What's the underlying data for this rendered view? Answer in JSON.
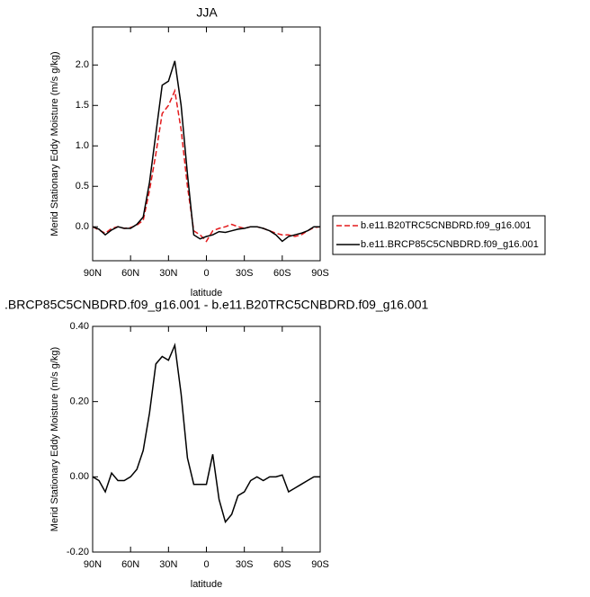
{
  "chart_data": [
    {
      "type": "line",
      "title": "JJA",
      "x_label": "latitude",
      "y_label": "Merid Stationary Eddy Moisture (m/s g/kg)",
      "x": [
        90,
        85,
        80,
        75,
        70,
        65,
        60,
        55,
        50,
        45,
        40,
        35,
        30,
        25,
        20,
        15,
        10,
        5,
        0,
        -5,
        -10,
        -15,
        -20,
        -25,
        -30,
        -35,
        -40,
        -45,
        -50,
        -55,
        -60,
        -65,
        -70,
        -75,
        -80,
        -85,
        -90
      ],
      "xlim": [
        90,
        -90
      ],
      "xticks": [
        {
          "value": 90,
          "label": "90N"
        },
        {
          "value": 60,
          "label": "60N"
        },
        {
          "value": 30,
          "label": "30N"
        },
        0,
        {
          "value": -30,
          "label": "30S"
        },
        {
          "value": -60,
          "label": "60S"
        },
        {
          "value": -90,
          "label": "90S"
        }
      ],
      "ylim": [
        -0.42,
        2.47
      ],
      "yticks": [
        {
          "value": 0,
          "label": "0.0"
        },
        0.5,
        {
          "value": 1,
          "label": "1.0"
        },
        1.5,
        {
          "value": 2,
          "label": "2.0"
        }
      ],
      "legend": "right",
      "series": [
        {
          "name": "b.e11.B20TRC5CNBDRD.f09_g16.001",
          "color": "#e41a1c",
          "dash": "dashed",
          "values": [
            0,
            -0.04,
            -0.08,
            -0.02,
            0,
            -0.02,
            -0.01,
            0.02,
            0.08,
            0.45,
            0.9,
            1.4,
            1.5,
            1.68,
            1.2,
            0.5,
            -0.05,
            -0.1,
            -0.18,
            -0.05,
            -0.02,
            0,
            0.03,
            0,
            -0.02,
            0,
            0,
            -0.02,
            -0.05,
            -0.08,
            -0.1,
            -0.1,
            -0.12,
            -0.1,
            -0.05,
            -0.01,
            0
          ]
        },
        {
          "name": "b.e11.BRCP85C5CNBDRD.f09_g16.001",
          "color": "#000000",
          "dash": "solid",
          "values": [
            0,
            -0.03,
            -0.1,
            -0.04,
            0,
            -0.02,
            -0.02,
            0.03,
            0.12,
            0.55,
            1.15,
            1.75,
            1.8,
            2.05,
            1.5,
            0.65,
            -0.1,
            -0.15,
            -0.12,
            -0.1,
            -0.06,
            -0.07,
            -0.05,
            -0.03,
            -0.02,
            0,
            0,
            -0.02,
            -0.05,
            -0.1,
            -0.18,
            -0.12,
            -0.1,
            -0.08,
            -0.05,
            0,
            0
          ]
        }
      ]
    },
    {
      "type": "line",
      "title": ".BRCP85C5CNBDRD.f09_g16.001 - b.e11.B20TRC5CNBDRD.f09_g16.001",
      "x_label": "latitude",
      "y_label": "Merid Stationary Eddy Moisture (m/s g/kg)",
      "x": [
        90,
        85,
        80,
        75,
        70,
        65,
        60,
        55,
        50,
        45,
        40,
        35,
        30,
        25,
        20,
        15,
        10,
        5,
        0,
        -5,
        -10,
        -15,
        -20,
        -25,
        -30,
        -35,
        -40,
        -45,
        -50,
        -55,
        -60,
        -65,
        -70,
        -75,
        -80,
        -85,
        -90
      ],
      "xlim": [
        90,
        -90
      ],
      "xticks": [
        {
          "value": 90,
          "label": "90N"
        },
        {
          "value": 60,
          "label": "60N"
        },
        {
          "value": 30,
          "label": "30N"
        },
        0,
        {
          "value": -30,
          "label": "30S"
        },
        {
          "value": -60,
          "label": "60S"
        },
        {
          "value": -90,
          "label": "90S"
        }
      ],
      "ylim": [
        -0.2,
        0.4
      ],
      "yticks": [
        {
          "value": -0.2,
          "label": "-0.20"
        },
        {
          "value": 0,
          "label": "0.00"
        },
        {
          "value": 0.2,
          "label": "0.20"
        },
        {
          "value": 0.4,
          "label": "0.40"
        }
      ],
      "series": [
        {
          "color": "#000000",
          "dash": "solid",
          "values": [
            0,
            -0.01,
            -0.04,
            0.01,
            -0.01,
            -0.01,
            0,
            0.02,
            0.07,
            0.17,
            0.3,
            0.32,
            0.31,
            0.35,
            0.22,
            0.05,
            -0.02,
            -0.02,
            -0.02,
            0.06,
            -0.06,
            -0.12,
            -0.1,
            -0.05,
            -0.04,
            -0.01,
            0,
            -0.01,
            0,
            0,
            0.005,
            -0.04,
            -0.03,
            -0.02,
            -0.01,
            0,
            0
          ]
        }
      ]
    }
  ]
}
